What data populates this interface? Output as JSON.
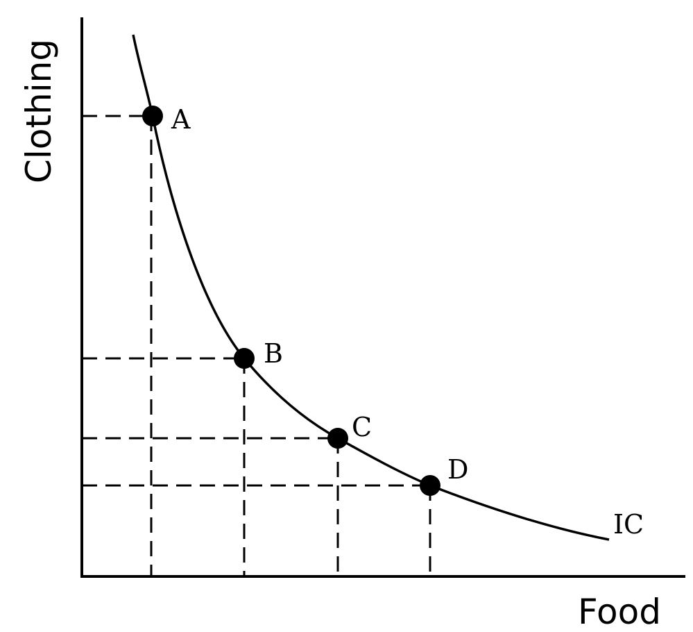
{
  "axes": {
    "y_label": "Clothing",
    "x_label": "Food"
  },
  "curve": {
    "label": "IC"
  },
  "points": [
    {
      "label": "A"
    },
    {
      "label": "B"
    },
    {
      "label": "C"
    },
    {
      "label": "D"
    }
  ],
  "colors": {
    "line": "#000000",
    "background": "#ffffff"
  }
}
